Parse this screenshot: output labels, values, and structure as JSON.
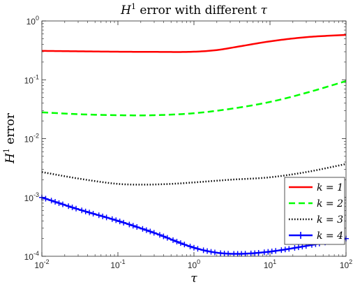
{
  "chart_data": {
    "type": "line",
    "title": {
      "var": "H",
      "sup": "1",
      "text": " error with different ",
      "greek": "τ"
    },
    "xlabel": "τ",
    "ylabel": {
      "var": "H",
      "sup": "1",
      "text": " error"
    },
    "xscale": "log",
    "yscale": "log",
    "xlim": [
      0.01,
      100
    ],
    "ylim": [
      0.0001,
      1
    ],
    "grid": false,
    "legend_position": "bottom-right",
    "x_ticks": [
      {
        "value": 0.01,
        "base": "10",
        "exp": "-2"
      },
      {
        "value": 0.1,
        "base": "10",
        "exp": "-1"
      },
      {
        "value": 1,
        "base": "10",
        "exp": "0"
      },
      {
        "value": 10,
        "base": "10",
        "exp": "1"
      },
      {
        "value": 100,
        "base": "10",
        "exp": "2"
      }
    ],
    "y_ticks": [
      {
        "value": 0.0001,
        "base": "10",
        "exp": "-4"
      },
      {
        "value": 0.001,
        "base": "10",
        "exp": "-3"
      },
      {
        "value": 0.01,
        "base": "10",
        "exp": "-2"
      },
      {
        "value": 0.1,
        "base": "10",
        "exp": "-1"
      },
      {
        "value": 1,
        "base": "10",
        "exp": "0"
      }
    ],
    "series": [
      {
        "name": "k = 1",
        "color": "#ff0000",
        "style": "solid",
        "marker": "none",
        "points": [
          [
            0.01,
            0.31
          ],
          [
            0.03,
            0.305
          ],
          [
            0.1,
            0.3
          ],
          [
            0.3,
            0.298
          ],
          [
            1,
            0.3
          ],
          [
            2,
            0.32
          ],
          [
            4,
            0.37
          ],
          [
            10,
            0.45
          ],
          [
            30,
            0.53
          ],
          [
            100,
            0.58
          ]
        ]
      },
      {
        "name": "k = 2",
        "color": "#00ff00",
        "style": "dashed",
        "marker": "none",
        "points": [
          [
            0.01,
            0.028
          ],
          [
            0.03,
            0.026
          ],
          [
            0.1,
            0.025
          ],
          [
            0.3,
            0.025
          ],
          [
            1,
            0.027
          ],
          [
            3,
            0.032
          ],
          [
            10,
            0.042
          ],
          [
            30,
            0.06
          ],
          [
            100,
            0.095
          ]
        ]
      },
      {
        "name": "k = 3",
        "color": "#000000",
        "style": "dotted",
        "marker": "none",
        "points": [
          [
            0.01,
            0.0027
          ],
          [
            0.03,
            0.0021
          ],
          [
            0.1,
            0.0017
          ],
          [
            0.2,
            0.00165
          ],
          [
            0.5,
            0.0017
          ],
          [
            1,
            0.0018
          ],
          [
            3,
            0.002
          ],
          [
            10,
            0.0022
          ],
          [
            30,
            0.0027
          ],
          [
            100,
            0.0037
          ]
        ]
      },
      {
        "name": "k = 4",
        "color": "#0000ff",
        "style": "solid",
        "marker": "plus",
        "points": [
          [
            0.01,
            0.001
          ],
          [
            0.03,
            0.00063
          ],
          [
            0.1,
            0.0004
          ],
          [
            0.3,
            0.00025
          ],
          [
            1,
            0.00014
          ],
          [
            2,
            0.000115
          ],
          [
            4,
            0.00011
          ],
          [
            10,
            0.00012
          ],
          [
            30,
            0.00015
          ],
          [
            100,
            0.0002
          ]
        ]
      }
    ]
  }
}
